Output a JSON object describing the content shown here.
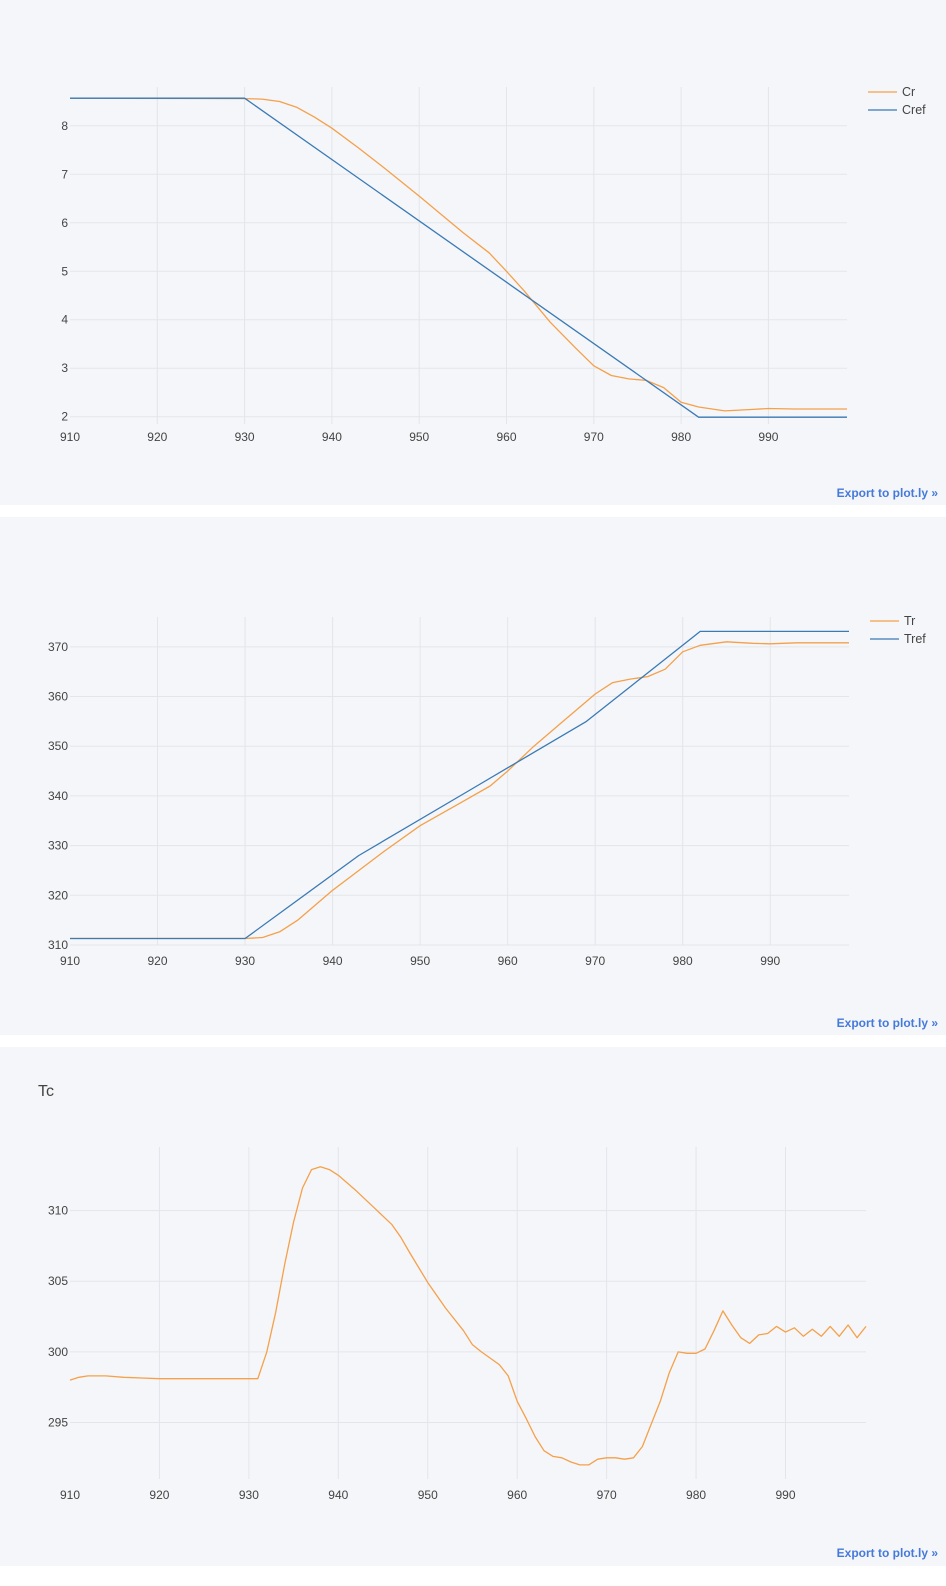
{
  "export_label": "Export to plot.ly »",
  "colors": {
    "orange": "#f5a04a",
    "blue": "#3a7ab5",
    "grid": "#e3e5ea",
    "panel_bg": "#f5f6f9",
    "link": "#447adb"
  },
  "chart_data": [
    {
      "type": "line",
      "title": "",
      "xlim": [
        910,
        999
      ],
      "ylim": [
        1.85,
        8.8
      ],
      "xticks": [
        910,
        920,
        930,
        940,
        950,
        960,
        970,
        980,
        990
      ],
      "yticks": [
        2,
        3,
        4,
        5,
        6,
        7,
        8
      ],
      "grid": true,
      "legend_position": "top-right",
      "series": [
        {
          "name": "Cr",
          "color": "#f5a04a",
          "x": [
            910,
            930,
            932,
            934,
            936,
            938,
            940,
            943,
            946,
            950,
            955,
            958,
            960,
            962,
            965,
            968,
            970,
            972,
            974,
            976,
            978,
            980,
            982,
            985,
            988,
            990,
            993,
            996,
            999
          ],
          "y": [
            8.57,
            8.56,
            8.55,
            8.5,
            8.38,
            8.18,
            7.95,
            7.55,
            7.13,
            6.55,
            5.8,
            5.38,
            5.0,
            4.6,
            3.95,
            3.4,
            3.05,
            2.85,
            2.78,
            2.75,
            2.6,
            2.3,
            2.2,
            2.12,
            2.15,
            2.17,
            2.16,
            2.16,
            2.16
          ]
        },
        {
          "name": "Cref",
          "color": "#3a7ab5",
          "x": [
            910,
            930,
            982,
            999
          ],
          "y": [
            8.57,
            8.57,
            1.99,
            1.99
          ]
        }
      ]
    },
    {
      "type": "line",
      "title": "",
      "xlim": [
        910,
        999
      ],
      "ylim": [
        310,
        376
      ],
      "xticks": [
        910,
        920,
        930,
        940,
        950,
        960,
        970,
        980,
        990
      ],
      "yticks": [
        310,
        320,
        330,
        340,
        350,
        360,
        370
      ],
      "grid": true,
      "legend_position": "top-right",
      "series": [
        {
          "name": "Tr",
          "color": "#f5a04a",
          "x": [
            910,
            930,
            932,
            934,
            936,
            938,
            940,
            943,
            946,
            950,
            955,
            958,
            960,
            963,
            966,
            968,
            970,
            972,
            974,
            976,
            978,
            980,
            982,
            985,
            988,
            990,
            993,
            996,
            999
          ],
          "y": [
            311.3,
            311.3,
            311.5,
            312.7,
            315.0,
            318.0,
            321.0,
            325.0,
            329.0,
            334.0,
            339.0,
            342.0,
            345.0,
            350.0,
            354.5,
            357.5,
            360.5,
            362.8,
            363.5,
            364.0,
            365.5,
            369.0,
            370.3,
            371.0,
            370.7,
            370.6,
            370.8,
            370.8,
            370.8
          ]
        },
        {
          "name": "Tref",
          "color": "#3a7ab5",
          "x": [
            910,
            930,
            943,
            956,
            969,
            982,
            999
          ],
          "y": [
            311.3,
            311.3,
            328.0,
            341.5,
            355.0,
            373.1,
            373.1
          ]
        }
      ]
    },
    {
      "type": "line",
      "title": "Tc",
      "xlim": [
        910,
        999
      ],
      "ylim": [
        291,
        314.5
      ],
      "xticks": [
        910,
        920,
        930,
        940,
        950,
        960,
        970,
        980,
        990
      ],
      "yticks": [
        295,
        300,
        305,
        310
      ],
      "grid": true,
      "legend_position": "none",
      "series": [
        {
          "name": "",
          "color": "#f5a04a",
          "x": [
            910,
            911,
            912,
            914,
            916,
            918,
            920,
            925,
            930,
            931,
            932,
            933,
            934,
            935,
            936,
            937,
            938,
            939,
            940,
            942,
            944,
            946,
            947,
            948,
            950,
            952,
            954,
            955,
            956,
            958,
            959,
            960,
            961,
            962,
            963,
            964,
            965,
            966,
            967,
            968,
            969,
            970,
            971,
            972,
            973,
            974,
            975,
            976,
            977,
            978,
            979,
            980,
            981,
            982,
            983,
            984,
            985,
            986,
            987,
            988,
            989,
            990,
            991,
            992,
            993,
            994,
            995,
            996,
            997,
            998,
            999
          ],
          "y": [
            298.0,
            298.2,
            298.3,
            298.3,
            298.2,
            298.15,
            298.1,
            298.1,
            298.1,
            298.1,
            300.0,
            302.8,
            306.2,
            309.2,
            311.6,
            312.9,
            313.1,
            312.9,
            312.5,
            311.4,
            310.2,
            309.0,
            308.1,
            307.0,
            304.9,
            303.1,
            301.5,
            300.5,
            300.0,
            299.1,
            298.3,
            296.5,
            295.3,
            294.0,
            293.0,
            292.6,
            292.5,
            292.2,
            292.0,
            292.0,
            292.4,
            292.5,
            292.5,
            292.4,
            292.5,
            293.3,
            294.9,
            296.5,
            298.5,
            300.0,
            299.9,
            299.9,
            300.2,
            301.5,
            302.9,
            301.9,
            301.0,
            300.6,
            301.2,
            301.3,
            301.8,
            301.4,
            301.7,
            301.1,
            301.6,
            301.1,
            301.8,
            301.1,
            301.9,
            301.0,
            301.8
          ]
        }
      ]
    }
  ]
}
